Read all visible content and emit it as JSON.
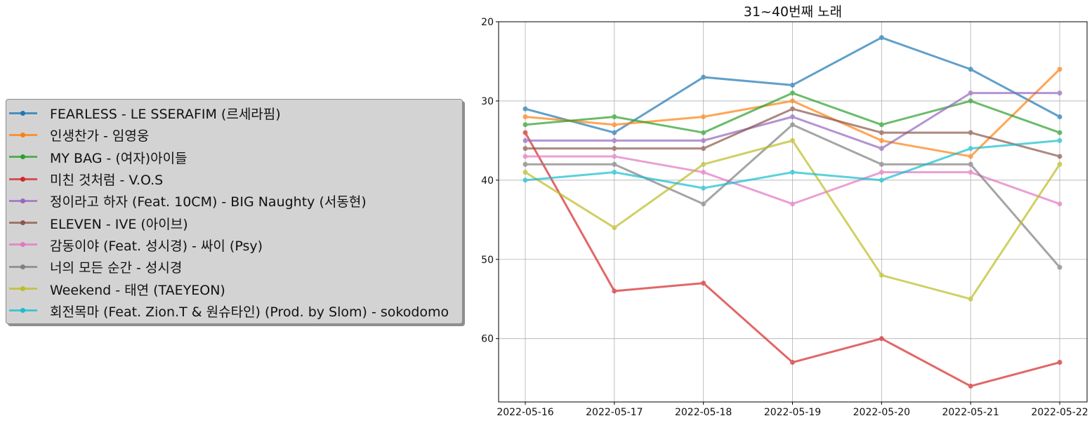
{
  "chart_data": {
    "type": "line",
    "title": "31~40번째 노래",
    "xlabel": "",
    "ylabel": "",
    "x": [
      "2022-05-16",
      "2022-05-17",
      "2022-05-18",
      "2022-05-19",
      "2022-05-20",
      "2022-05-21",
      "2022-05-22"
    ],
    "ylim": [
      68,
      20
    ],
    "y_inverted": true,
    "yticks": [
      20,
      30,
      40,
      50,
      60
    ],
    "grid": true,
    "legend_position": "left",
    "series": [
      {
        "name": "FEARLESS - LE SSERAFIM (르세라핌)",
        "color": "#1f77b4",
        "values": [
          31,
          34,
          27,
          28,
          22,
          26,
          32
        ]
      },
      {
        "name": "인생찬가 - 임영웅",
        "color": "#ff7f0e",
        "values": [
          32,
          33,
          32,
          30,
          35,
          37,
          26
        ]
      },
      {
        "name": "MY BAG - (여자)아이들",
        "color": "#2ca02c",
        "values": [
          33,
          32,
          34,
          29,
          33,
          30,
          34
        ]
      },
      {
        "name": "미친 것처럼 - V.O.S",
        "color": "#d62728",
        "values": [
          34,
          54,
          53,
          63,
          60,
          66,
          63
        ]
      },
      {
        "name": "정이라고 하자 (Feat. 10CM) - BIG Naughty (서동현)",
        "color": "#9467bd",
        "values": [
          35,
          35,
          35,
          32,
          36,
          29,
          29
        ]
      },
      {
        "name": "ELEVEN - IVE (아이브)",
        "color": "#8c564b",
        "values": [
          36,
          36,
          36,
          31,
          34,
          34,
          37
        ]
      },
      {
        "name": "감동이야 (Feat. 성시경) - 싸이 (Psy)",
        "color": "#e377c2",
        "values": [
          37,
          37,
          39,
          43,
          39,
          39,
          43
        ]
      },
      {
        "name": "너의 모든 순간 - 성시경",
        "color": "#7f7f7f",
        "values": [
          38,
          38,
          43,
          33,
          38,
          38,
          51
        ]
      },
      {
        "name": "Weekend - 태연 (TAEYEON)",
        "color": "#bcbd22",
        "values": [
          39,
          46,
          38,
          35,
          52,
          55,
          38
        ]
      },
      {
        "name": "회전목마 (Feat. Zion.T & 원슈타인) (Prod. by Slom) - sokodomo",
        "color": "#17becf",
        "values": [
          40,
          39,
          41,
          39,
          40,
          36,
          35
        ]
      }
    ]
  }
}
